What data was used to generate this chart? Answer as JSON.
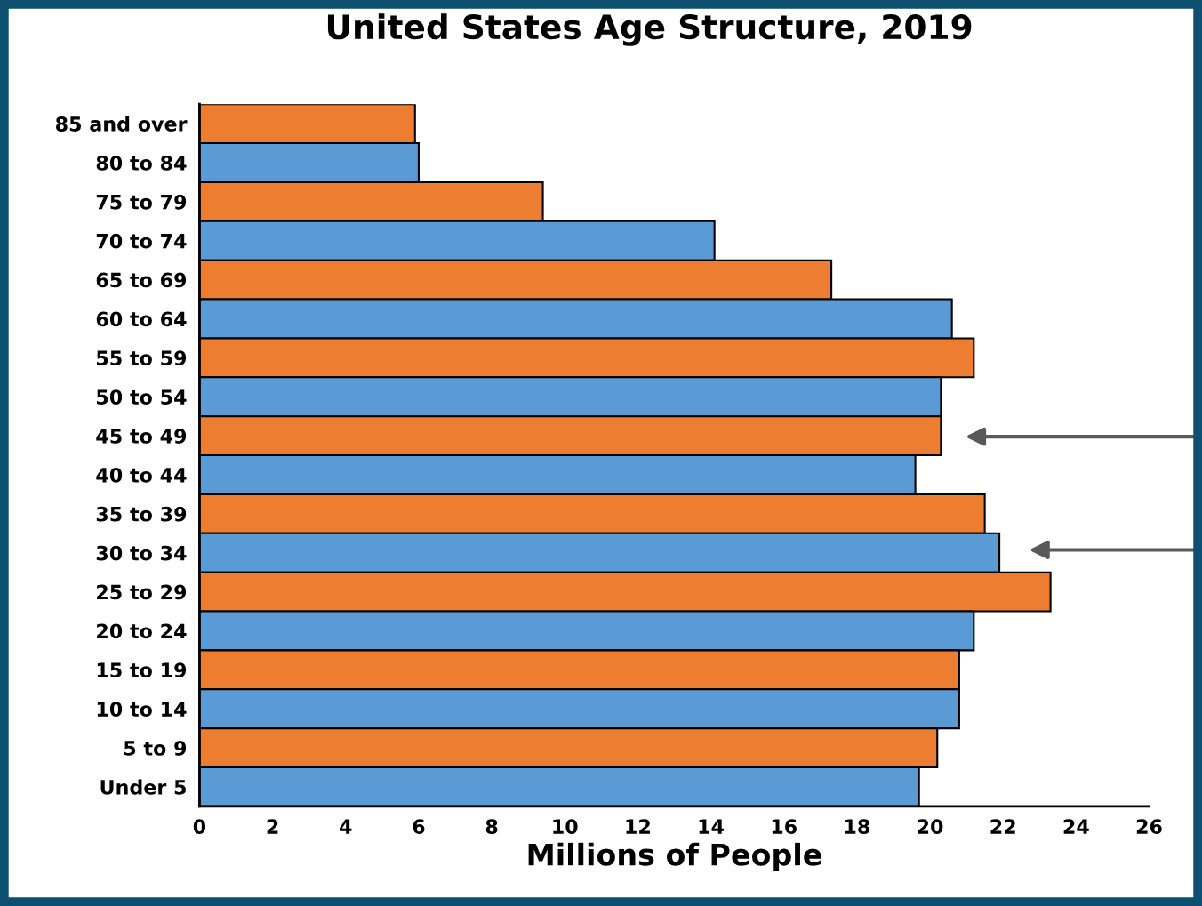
{
  "chart_data": {
    "type": "bar",
    "orientation": "horizontal",
    "title": "United States Age Structure, 2019",
    "xlabel": "Millions of People",
    "categories": [
      "85 and over",
      "80 to 84",
      "75 to 79",
      "70 to 74",
      "65 to 69",
      "60 to 64",
      "55 to 59",
      "50 to 54",
      "45 to 49",
      "40 to 44",
      "35 to 39",
      "30 to 34",
      "25 to 29",
      "20 to 24",
      "15 to 19",
      "10 to 14",
      "5 to 9",
      "Under 5"
    ],
    "values": [
      5.9,
      6.0,
      9.4,
      14.1,
      17.3,
      20.6,
      21.2,
      20.3,
      20.3,
      19.6,
      21.5,
      21.9,
      23.3,
      21.2,
      20.8,
      20.8,
      20.2,
      19.7
    ],
    "colors": [
      "#ed7d31",
      "#5b9bd5",
      "#ed7d31",
      "#5b9bd5",
      "#ed7d31",
      "#5b9bd5",
      "#ed7d31",
      "#5b9bd5",
      "#ed7d31",
      "#5b9bd5",
      "#ed7d31",
      "#5b9bd5",
      "#ed7d31",
      "#5b9bd5",
      "#ed7d31",
      "#5b9bd5",
      "#ed7d31",
      "#5b9bd5"
    ],
    "xlim": [
      0,
      26
    ],
    "xticks": [
      0,
      2,
      4,
      6,
      8,
      10,
      12,
      14,
      16,
      18,
      20,
      22,
      24,
      26
    ],
    "grid": false,
    "legend": false
  }
}
